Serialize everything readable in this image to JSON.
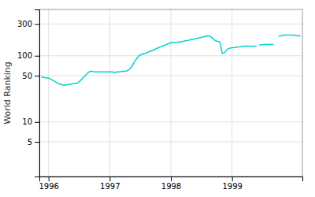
{
  "chart_data": {
    "type": "line",
    "ylabel": "World Ranking",
    "color": "#00d4cc",
    "log": "y",
    "grid": true,
    "xlim": [
      1995.85,
      2000.15
    ],
    "xticks": [
      1996,
      1997,
      1998,
      1999
    ],
    "ylim": [
      1.5,
      500
    ],
    "yticks": [
      5,
      10,
      50,
      100,
      300
    ],
    "series": [
      {
        "x": [
          1995.88,
          1995.92,
          1995.96,
          1996.0,
          1996.04,
          1996.08,
          1996.12,
          1996.16,
          1996.2,
          1996.24,
          1996.28,
          1996.32,
          1996.36,
          1996.4,
          1996.44,
          1996.48,
          1996.52,
          1996.56,
          1996.6,
          1996.64,
          1996.68,
          1996.72,
          1996.76,
          1996.8,
          1996.84,
          1996.88,
          1996.92,
          1996.96,
          1997.0,
          1997.04,
          1997.08,
          1997.12,
          1997.16,
          1997.2,
          1997.24,
          1997.28,
          1997.32,
          1997.36,
          1997.4,
          1997.44,
          1997.48,
          1997.52,
          1997.56,
          1997.6,
          1997.64,
          1997.68,
          1997.72,
          1997.76,
          1997.8,
          1997.84,
          1997.88,
          1997.92,
          1997.96,
          1998.0,
          1998.04,
          1998.08,
          1998.12,
          1998.16,
          1998.2,
          1998.24,
          1998.28,
          1998.32,
          1998.36,
          1998.4,
          1998.44,
          1998.48,
          1998.52,
          1998.56,
          1998.6,
          1998.64,
          1998.68,
          1998.72,
          1998.76,
          1998.8,
          1998.84,
          1998.88,
          1998.92,
          1998.96,
          1999.0,
          1999.04,
          1999.08,
          1999.12,
          1999.16,
          1999.2,
          1999.24,
          1999.28,
          1999.32,
          1999.36,
          1999.4
        ],
        "values": [
          48,
          47,
          46,
          46,
          44,
          42,
          40,
          38,
          37,
          36,
          36,
          37,
          37,
          38,
          38,
          39,
          42,
          46,
          50,
          55,
          58,
          58,
          57,
          57,
          57,
          57,
          57,
          57,
          57,
          57,
          56,
          57,
          57,
          58,
          58,
          59,
          62,
          68,
          80,
          90,
          100,
          105,
          108,
          110,
          115,
          118,
          122,
          128,
          133,
          138,
          142,
          147,
          152,
          158,
          158,
          158,
          160,
          163,
          165,
          168,
          170,
          175,
          178,
          180,
          185,
          188,
          192,
          196,
          200,
          197,
          185,
          170,
          165,
          162,
          108,
          112,
          125,
          130,
          132,
          133,
          135,
          136,
          138,
          140,
          140,
          140,
          139,
          140,
          140
        ]
      },
      {
        "x": [
          1999.44,
          1999.48,
          1999.52,
          1999.56,
          1999.6,
          1999.64,
          1999.68
        ],
        "values": [
          145,
          147,
          148,
          148,
          149,
          148,
          148
        ]
      },
      {
        "x": [
          1999.76,
          1999.8,
          1999.84,
          1999.88,
          1999.92,
          1999.96,
          2000.0,
          2000.04,
          2000.08,
          2000.12
        ],
        "values": [
          195,
          200,
          205,
          205,
          205,
          205,
          205,
          203,
          200,
          200
        ]
      }
    ]
  }
}
